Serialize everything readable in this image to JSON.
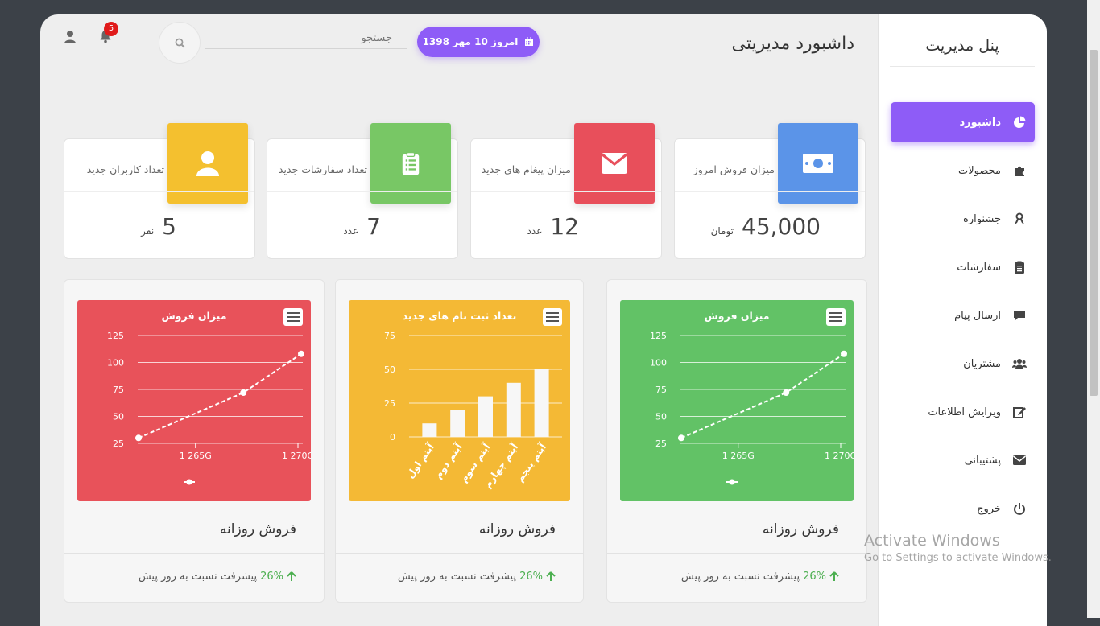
{
  "sidebar": {
    "brand": "پنل مدیریت",
    "items": [
      {
        "label": "داشبورد",
        "icon": "pie-chart-icon",
        "active": true
      },
      {
        "label": "محصولات",
        "icon": "puzzle-icon"
      },
      {
        "label": "جشنواره",
        "icon": "ribbon-icon"
      },
      {
        "label": "سفارشات",
        "icon": "clipboard-icon"
      },
      {
        "label": "ارسال پیام",
        "icon": "comment-icon"
      },
      {
        "label": "مشتریان",
        "icon": "users-icon"
      },
      {
        "label": "ویرایش اطلاعات",
        "icon": "edit-icon"
      },
      {
        "label": "پشتیبانی",
        "icon": "envelope-icon"
      },
      {
        "label": "خروج",
        "icon": "power-icon"
      }
    ]
  },
  "header": {
    "title": "داشبورد مدیریتی",
    "date": "امروز 10 مهر 1398",
    "search_placeholder": "جستجو",
    "notifications": "5"
  },
  "stats": [
    {
      "title": "میزان فروش امروز",
      "value": "45,000",
      "unit": "تومان",
      "color": "#5b94e8",
      "icon": "money-icon"
    },
    {
      "title": "میزان پیغام های جدید",
      "value": "12",
      "unit": "عدد",
      "color": "#e84f5b",
      "icon": "envelope-icon"
    },
    {
      "title": "تعداد سفارشات جدید",
      "value": "7",
      "unit": "عدد",
      "color": "#78c765",
      "icon": "clipboard-icon"
    },
    {
      "title": "تعداد کاربران جدید",
      "value": "5",
      "unit": "نفر",
      "color": "#f4c02f",
      "icon": "user-icon"
    }
  ],
  "cards": [
    {
      "title": "فروش روزانه",
      "pct": "26%",
      "note": "پیشرفت نسبت به روز پیش"
    },
    {
      "title": "فروش روزانه",
      "pct": "26%",
      "note": "پیشرفت نسبت به روز پیش"
    },
    {
      "title": "فروش روزانه",
      "pct": "26%",
      "note": "پیشرفت نسبت به روز پیش"
    }
  ],
  "chart_data": [
    {
      "type": "line",
      "title": "میزان فروش",
      "color": "#62c266",
      "yticks": [
        125,
        100,
        75,
        50,
        25
      ],
      "ylim": [
        25,
        125
      ],
      "xticks": [
        "1 265G",
        "1 270G"
      ],
      "values": [
        30,
        72,
        108
      ]
    },
    {
      "type": "bar",
      "title": "تعداد ثبت نام های جدید",
      "color": "#f4b935",
      "yticks": [
        75,
        50,
        25,
        0
      ],
      "ylim": [
        0,
        75
      ],
      "categories": [
        "آیتم اول",
        "آیتم دوم",
        "آیتم سوم",
        "آیتم چهارم",
        "آیتم پنجم"
      ],
      "values": [
        10,
        20,
        30,
        40,
        50
      ]
    },
    {
      "type": "line",
      "title": "میزان فروش",
      "color": "#e8525a",
      "yticks": [
        125,
        100,
        75,
        50,
        25
      ],
      "ylim": [
        25,
        125
      ],
      "xticks": [
        "1 265G",
        "1 270G"
      ],
      "values": [
        30,
        72,
        108
      ]
    }
  ],
  "watermark": {
    "line1": "Activate Windows",
    "line2": "Go to Settings to activate Windows."
  }
}
